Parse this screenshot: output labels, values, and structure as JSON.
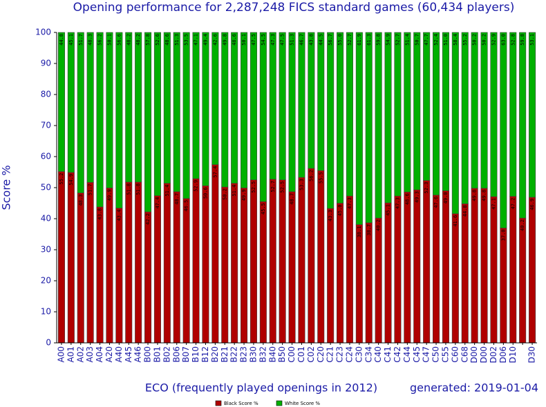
{
  "chart_data": {
    "type": "stacked_bar",
    "title": "Opening performance for 2,287,248 FICS standard games (60,434 players)",
    "xlabel": "ECO (frequently played openings in 2012)",
    "note": "generated: 2019-01-04",
    "ylabel": "Score %",
    "categories": [
      "A00",
      "A01",
      "A02",
      "A03",
      "A04",
      "A20",
      "A40",
      "A45",
      "A46",
      "B00",
      "B01",
      "B02",
      "B06",
      "B07",
      "B10",
      "B12",
      "B20",
      "B21",
      "B22",
      "B23",
      "B30",
      "B32",
      "B40",
      "B50",
      "C00",
      "C01",
      "C02",
      "C20",
      "C21",
      "C23",
      "C24",
      "C30",
      "C34",
      "C40",
      "C41",
      "C42",
      "C44",
      "C45",
      "C47",
      "C50",
      "C55",
      "C60",
      "C68",
      "D00",
      "D00",
      "D02",
      "D06",
      "D10",
      null,
      "D30"
    ],
    "series": [
      {
        "name": "Black Score %",
        "color": "#b00000",
        "values": [
          55.2,
          54.9,
          48.3,
          51.7,
          43.8,
          49.9,
          43.4,
          51.8,
          51.8,
          42.2,
          47.4,
          51.4,
          48.7,
          46.5,
          52.9,
          50.6,
          57.4,
          50.2,
          51.4,
          49.9,
          52.5,
          45.5,
          52.7,
          52.5,
          48.7,
          53.3,
          56.2,
          55.5,
          43.3,
          45.0,
          47.3,
          38.1,
          38.7,
          40.2,
          45.1,
          47.3,
          48.6,
          49.3,
          52.3,
          47.6,
          49.0,
          41.6,
          44.8,
          49.8,
          49.8,
          47.1,
          37.0,
          47.2,
          40.2,
          46.9
        ],
        "value_labels": [
          "55.2",
          "54.9",
          "48.3",
          "51.7",
          "43.8",
          "49.9",
          "43.4",
          "51.8",
          "51.8",
          "42.2",
          "47.4",
          "51.4",
          "48.7",
          "46.5",
          "52.9",
          "50.6",
          "57.4",
          "50.2",
          "51.4",
          "49.9",
          "52.5",
          "45.5",
          "52.7",
          "52.5",
          "48.7",
          "53.3",
          "56.2",
          "55.5",
          "43.3",
          "45.0",
          "47.3",
          "38.1",
          "38.7",
          "40.2",
          "45.1",
          "47.3",
          "48.6",
          "49.3",
          "52.3",
          "47.6",
          "49.0",
          "41.6",
          "44.8",
          "49.8",
          "49.8",
          "47.1",
          "37.0",
          "47.2",
          "40.2",
          "46.9"
        ]
      },
      {
        "name": "White Score %",
        "color": "#00b000",
        "values": [
          44.8,
          45.1,
          51.7,
          48.3,
          56.2,
          50.1,
          56.6,
          48.2,
          48.2,
          57.8,
          52.6,
          48.6,
          51.3,
          53.5,
          47.1,
          49.4,
          42.6,
          49.8,
          48.6,
          50.1,
          47.5,
          54.5,
          47.3,
          47.5,
          51.3,
          46.7,
          43.8,
          44.5,
          56.7,
          55.0,
          52.7,
          61.9,
          61.3,
          59.8,
          54.9,
          52.7,
          51.4,
          50.7,
          47.7,
          52.4,
          51.0,
          58.4,
          55.2,
          50.2,
          50.2,
          52.9,
          63.0,
          52.8,
          59.8,
          53.1
        ],
        "value_labels": [
          "44.8",
          "45.1",
          "51.7",
          "48.3",
          "56.2",
          "50.1",
          "56.6",
          "48.2",
          "48.2",
          "57.8",
          "52.6",
          "48.6",
          "51.3",
          "53.5",
          "47.1",
          "49.4",
          "42.6",
          "49.8",
          "48.6",
          "50.1",
          "47.5",
          "54.5",
          "47.3",
          "47.5",
          "51.3",
          "46.7",
          "43.8",
          "44.5",
          "56.7",
          "55.0",
          "52.7",
          "61.9",
          "61.3",
          "59.8",
          "54.9",
          "52.7",
          "51.4",
          "50.7",
          "47.7",
          "52.4",
          "51.0",
          "58.4",
          "55.2",
          "50.2",
          "50.2",
          "52.9",
          "63.0",
          "52.8",
          "59.8",
          "53.1"
        ]
      }
    ],
    "ylim": [
      0,
      100
    ],
    "yticks": [
      0,
      10,
      20,
      30,
      40,
      50,
      60,
      70,
      80,
      90,
      100
    ]
  }
}
